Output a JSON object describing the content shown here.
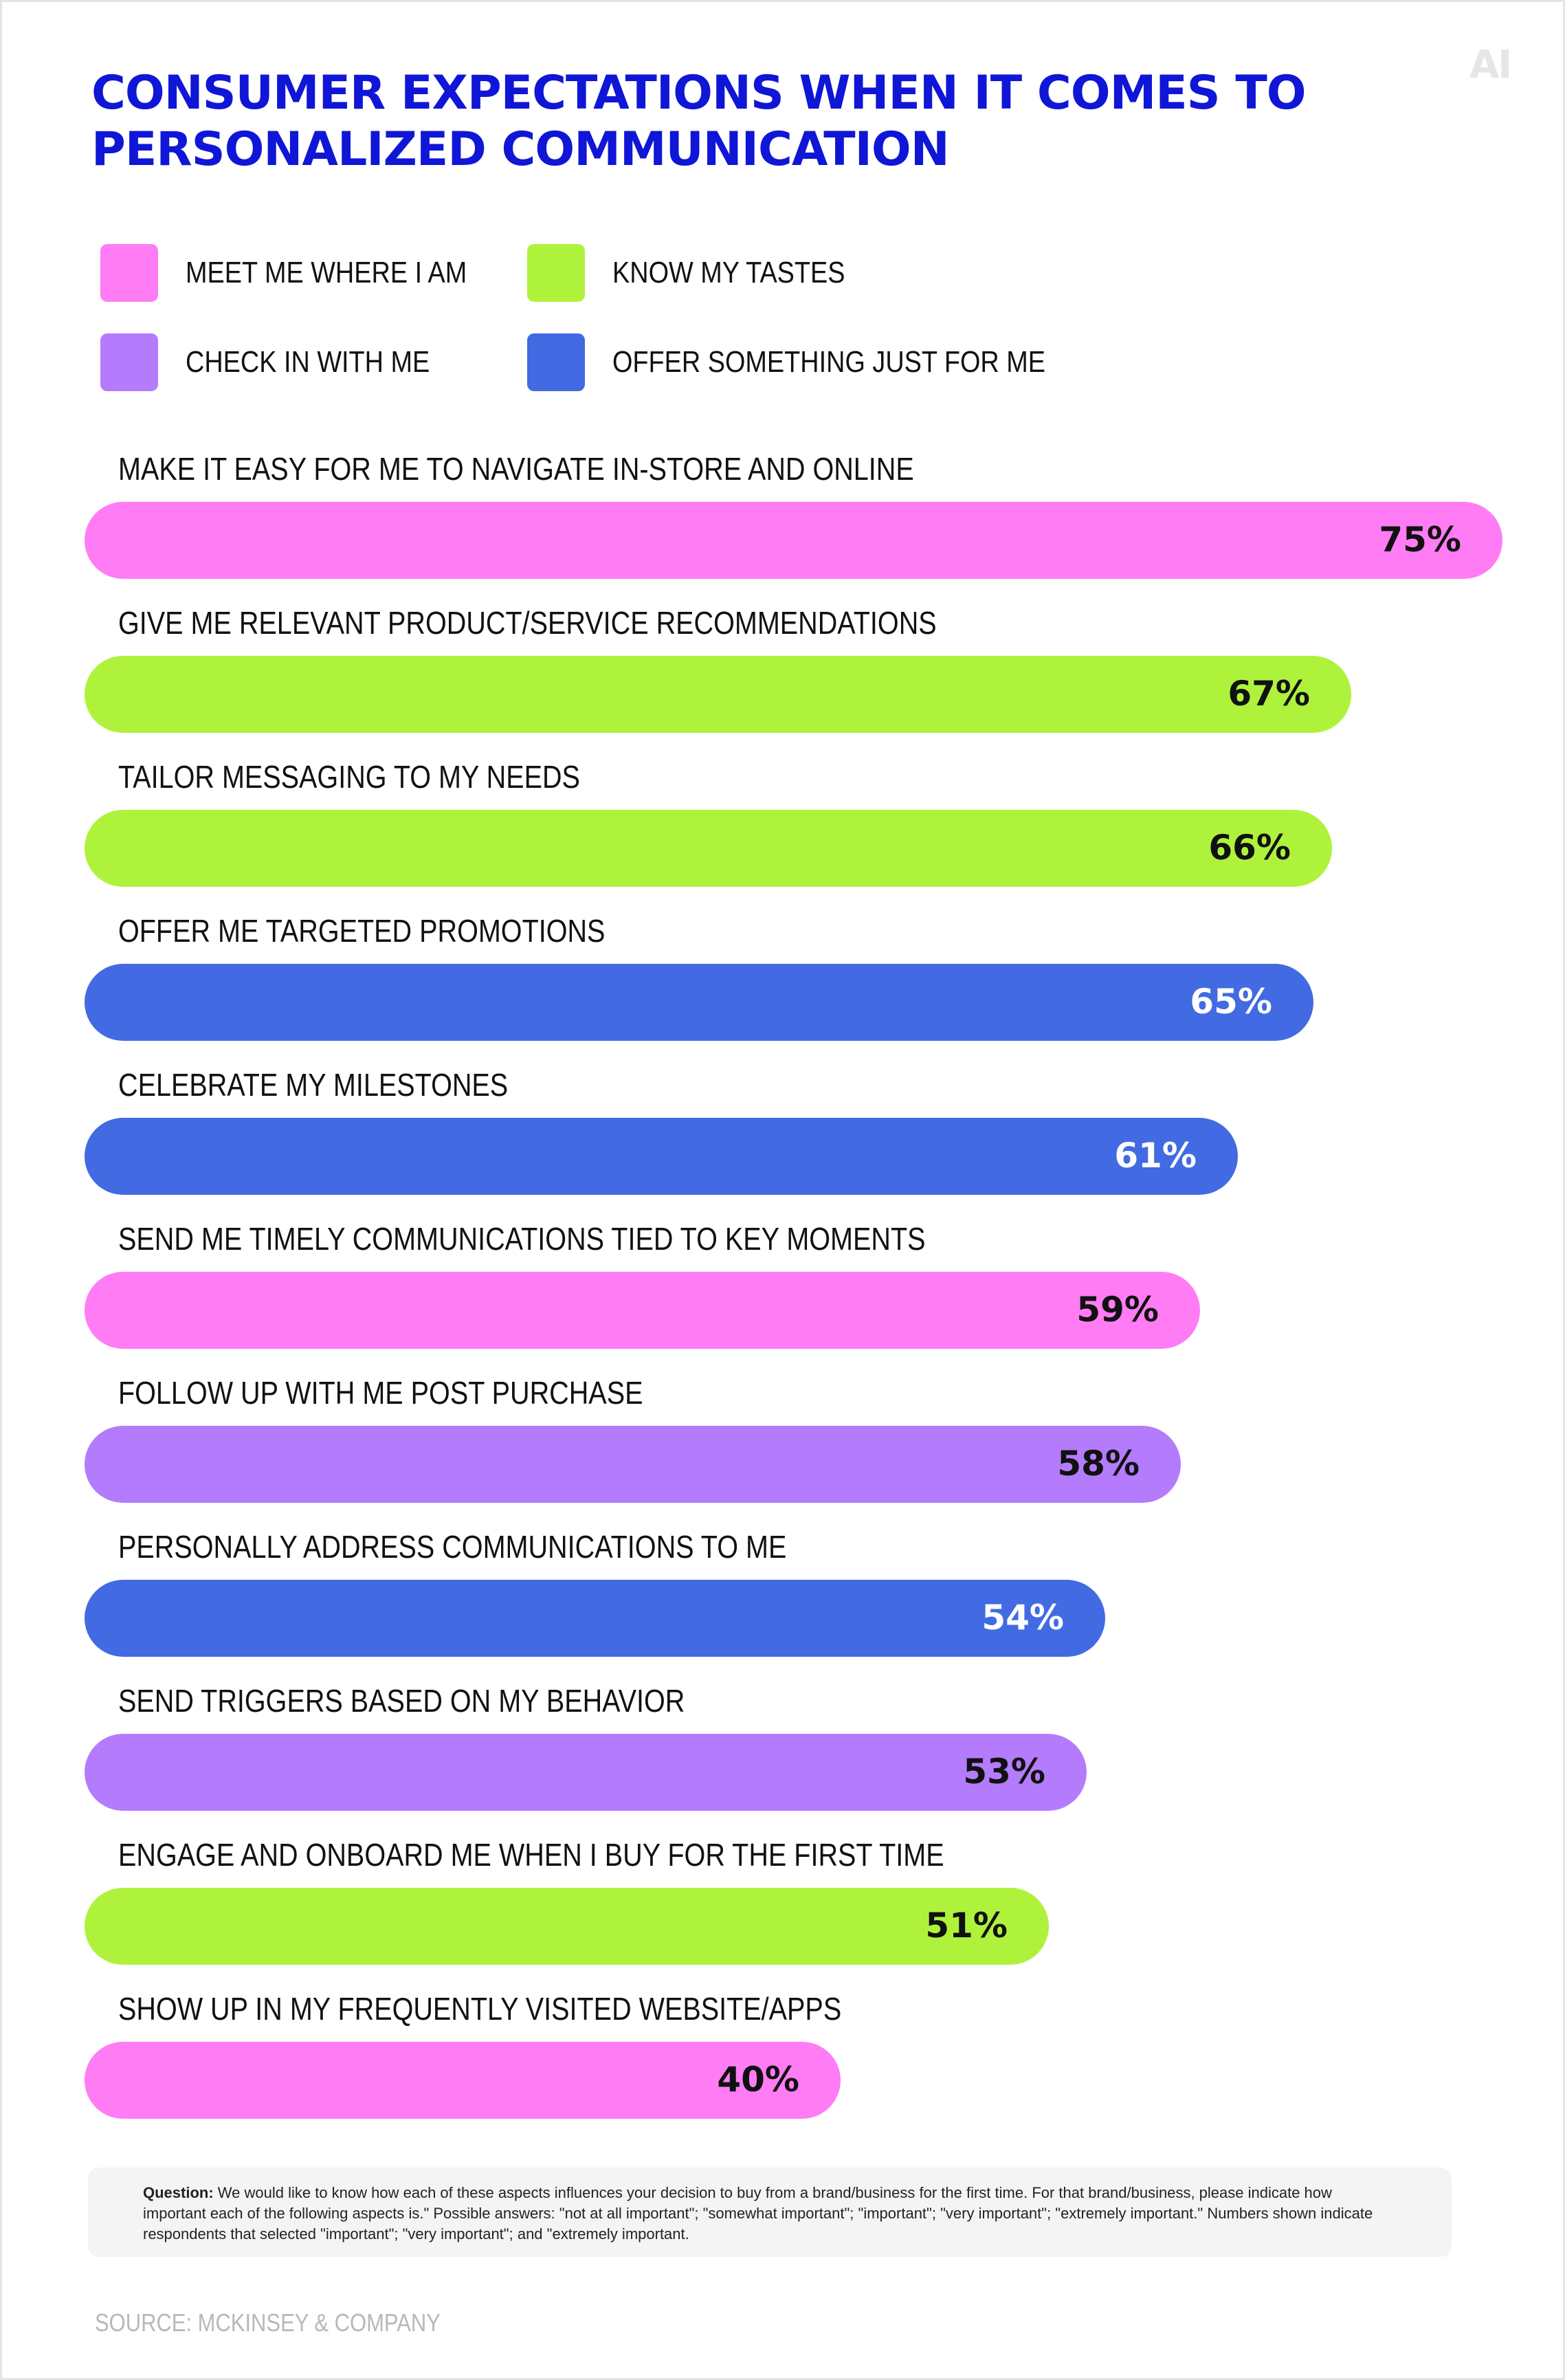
{
  "logo": "AI",
  "colors": {
    "title": "#1016d6",
    "meet": "#ff7cf5",
    "tastes": "#aff23c",
    "check": "#b57bfd",
    "offer": "#426ae2"
  },
  "legend": [
    {
      "label": "MEET ME WHERE I AM",
      "color": "#ff7cf5"
    },
    {
      "label": "KNOW MY TASTES",
      "color": "#aff23c"
    },
    {
      "label": "CHECK IN WITH ME",
      "color": "#b57bfd"
    },
    {
      "label": "OFFER SOMETHING JUST FOR ME",
      "color": "#426ae2"
    }
  ],
  "chart_data": {
    "type": "bar",
    "orientation": "horizontal",
    "title": "CONSUMER EXPECTATIONS WHEN IT COMES TO PERSONALIZED COMMUNICATION",
    "xlim": [
      0,
      75
    ],
    "categories": [
      "MAKE IT EASY FOR ME TO NAVIGATE IN-STORE AND ONLINE",
      "GIVE ME RELEVANT PRODUCT/SERVICE RECOMMENDATIONS",
      "TAILOR MESSAGING TO MY NEEDS",
      "OFFER ME TARGETED PROMOTIONS",
      "CELEBRATE MY MILESTONES",
      "SEND ME TIMELY COMMUNICATIONS TIED TO KEY MOMENTS",
      "FOLLOW UP WITH ME POST PURCHASE",
      "PERSONALLY ADDRESS COMMUNICATIONS TO ME",
      "SEND TRIGGERS BASED ON MY BEHAVIOR",
      "ENGAGE AND ONBOARD ME WHEN I BUY FOR THE FIRST TIME",
      "SHOW UP IN MY FREQUENTLY VISITED WEBSITE/APPS"
    ],
    "values": [
      75,
      67,
      66,
      65,
      61,
      59,
      58,
      54,
      53,
      51,
      40
    ],
    "value_labels": [
      "75%",
      "67%",
      "66%",
      "65%",
      "61%",
      "59%",
      "58%",
      "54%",
      "53%",
      "51%",
      "40%"
    ],
    "groups": [
      "MEET ME WHERE I AM",
      "KNOW MY TASTES",
      "KNOW MY TASTES",
      "OFFER SOMETHING JUST FOR ME",
      "OFFER SOMETHING JUST FOR ME",
      "MEET ME WHERE I AM",
      "CHECK IN WITH ME",
      "OFFER SOMETHING JUST FOR ME",
      "CHECK IN WITH ME",
      "KNOW MY TASTES",
      "MEET ME WHERE I AM"
    ],
    "bar_colors": [
      "#ff7cf5",
      "#aff23c",
      "#aff23c",
      "#426ae2",
      "#426ae2",
      "#ff7cf5",
      "#b57bfd",
      "#426ae2",
      "#b57bfd",
      "#aff23c",
      "#ff7cf5"
    ],
    "label_colors": [
      "#111111",
      "#111111",
      "#111111",
      "#ffffff",
      "#ffffff",
      "#111111",
      "#111111",
      "#ffffff",
      "#111111",
      "#111111",
      "#111111"
    ]
  },
  "note": {
    "label": "Question:",
    "text": " We would like to know how each of these aspects influences your decision to buy from a brand/business for the first time. For that brand/business, please indicate how important each of the following aspects is.\" Possible answers: \"not at all important\"; \"somewhat important\"; \"important\"; \"very important\"; \"extremely important.\" Numbers shown indicate respondents that selected \"important\"; \"very important\"; and \"extremely important."
  },
  "source": "SOURCE: MCKINSEY & COMPANY"
}
